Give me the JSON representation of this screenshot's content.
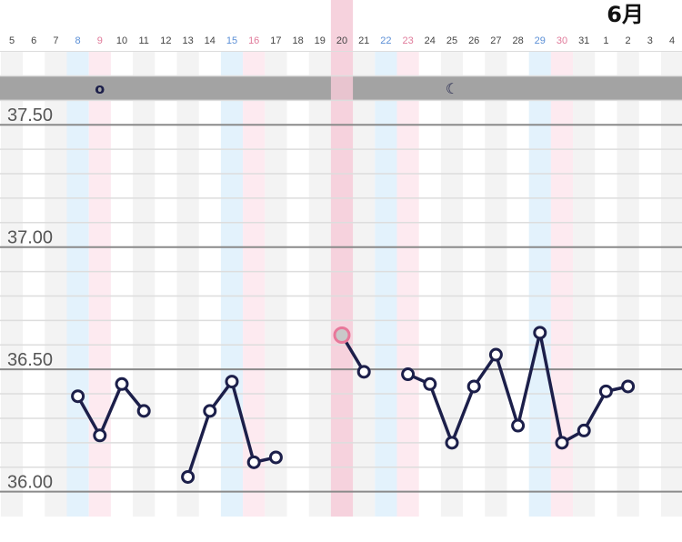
{
  "month_label": "6月",
  "colors": {
    "line": "#1c1f4a",
    "point_fill": "#ffffff",
    "highlight_point": "#e8789a",
    "highlight_band": "#f5cad7",
    "blue_day_band": "#e3f2fc",
    "pink_day_band": "#fdeaf0",
    "gray_stripe": "#f3f3f3",
    "grid_major": "#8a8a8a",
    "grid_minor": "#dddddd",
    "header_band": "#a3a3a3",
    "blue_day_text": "#5b8fd6",
    "pink_day_text": "#e07a9a",
    "normal_day_text": "#444444"
  },
  "markers": [
    {
      "day_index": 4,
      "glyph": "o",
      "icon": "ovulation-o-icon"
    },
    {
      "day_index": 20,
      "glyph": "☾",
      "icon": "moon-icon"
    }
  ],
  "chart_data": {
    "type": "line",
    "title": "",
    "xlabel": "",
    "ylabel": "",
    "ylim": [
      35.98,
      37.75
    ],
    "yticks": [
      "36.00",
      "36.50",
      "37.00",
      "37.50"
    ],
    "grid": true,
    "categories": [
      "5",
      "6",
      "7",
      "8",
      "9",
      "10",
      "11",
      "12",
      "13",
      "14",
      "15",
      "16",
      "17",
      "18",
      "19",
      "20",
      "21",
      "22",
      "23",
      "24",
      "25",
      "26",
      "27",
      "28",
      "29",
      "30",
      "31",
      "1",
      "2",
      "3",
      "4"
    ],
    "day_styles": [
      "normal",
      "normal",
      "normal",
      "blue",
      "pink",
      "normal",
      "normal",
      "normal",
      "normal",
      "normal",
      "blue",
      "pink",
      "normal",
      "normal",
      "normal",
      "highlight",
      "normal",
      "blue",
      "pink",
      "normal",
      "normal",
      "normal",
      "normal",
      "normal",
      "blue",
      "pink",
      "normal",
      "normal",
      "normal",
      "normal",
      "normal"
    ],
    "highlight_index": 15,
    "series": [
      {
        "values": [
          null,
          null,
          null,
          36.39,
          36.23,
          36.44,
          36.33,
          null,
          36.06,
          36.33,
          36.45,
          36.12,
          36.14,
          null,
          null,
          36.64,
          36.49,
          null,
          36.48,
          36.44,
          36.2,
          36.43,
          36.56,
          36.27,
          36.65,
          36.2,
          36.25,
          36.41,
          36.43,
          null,
          null
        ]
      }
    ]
  }
}
